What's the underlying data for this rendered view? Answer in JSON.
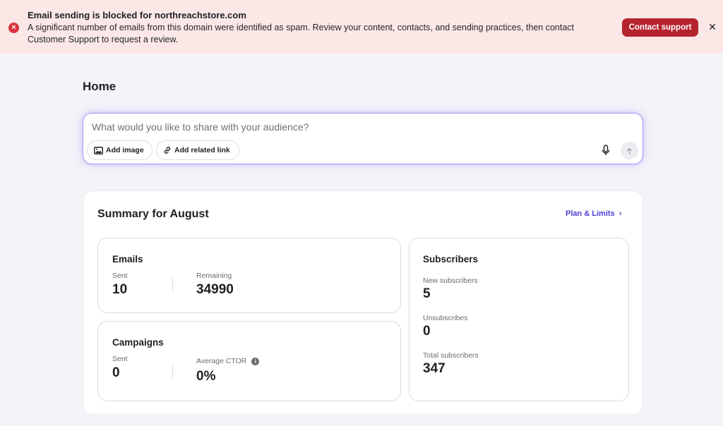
{
  "banner": {
    "title": "Email sending is blocked for northreachstore.com",
    "message": "A significant number of emails from this domain were identified as spam. Review your content, contacts, and sending practices, then contact Customer Support to request a review.",
    "contact_label": "Contact support",
    "close_label": "✕",
    "icon": "error-icon",
    "error_color": "#d8353e",
    "button_color": "#b5232f"
  },
  "page": {
    "title": "Home"
  },
  "composer": {
    "placeholder": "What would you like to share with your audience?",
    "add_image_label": "Add image",
    "add_link_label": "Add related link",
    "icons": [
      "image-icon",
      "link-icon",
      "microphone-icon",
      "arrow-up-icon"
    ]
  },
  "summary": {
    "title": "Summary for August",
    "plan_link_label": "Plan & Limits",
    "plan_link_color": "#4b3fcf",
    "emails": {
      "title": "Emails",
      "sent_label": "Sent",
      "sent_value": "10",
      "remaining_label": "Remaining",
      "remaining_value": "34990"
    },
    "campaigns": {
      "title": "Campaigns",
      "sent_label": "Sent",
      "sent_value": "0",
      "ctor_label": "Average CTOR",
      "ctor_value": "0%"
    },
    "subscribers": {
      "title": "Subscribers",
      "new_label": "New subscribers",
      "new_value": "5",
      "unsub_label": "Unsubscribes",
      "unsub_value": "0",
      "total_label": "Total subscribers",
      "total_value": "347"
    }
  }
}
